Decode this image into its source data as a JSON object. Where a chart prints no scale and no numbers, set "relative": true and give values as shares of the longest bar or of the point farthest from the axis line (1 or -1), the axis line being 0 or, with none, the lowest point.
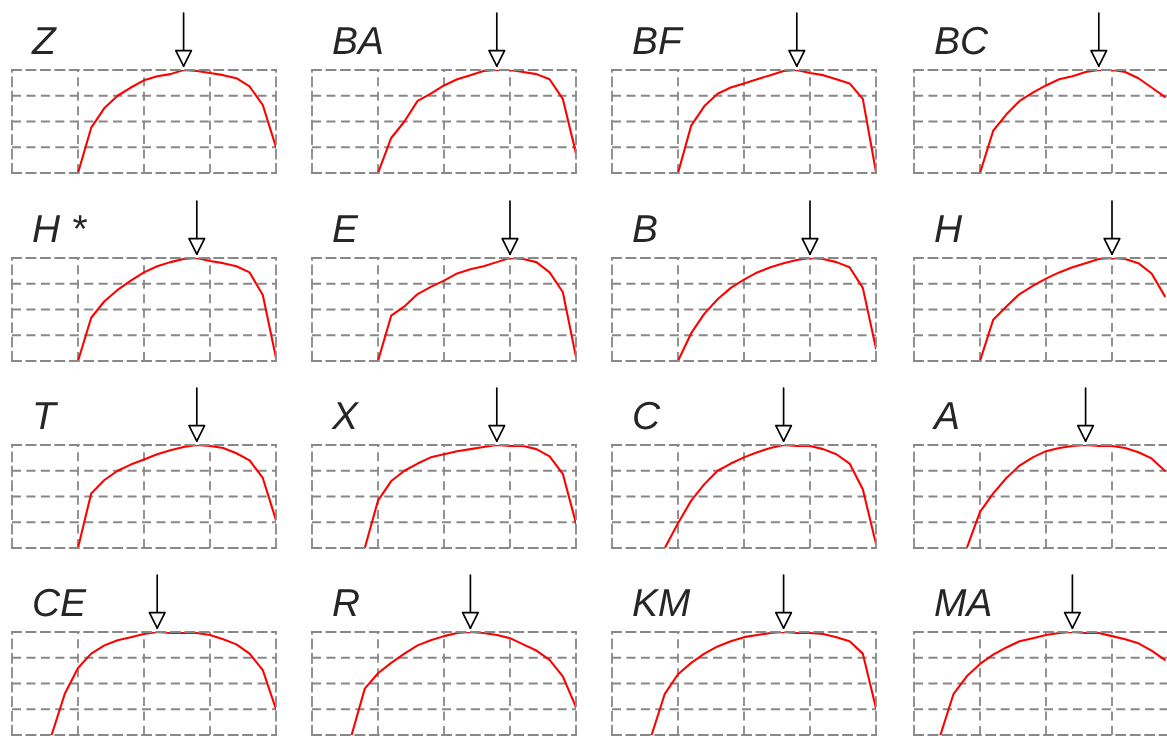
{
  "chart_data": [
    {
      "type": "line",
      "title": "Z",
      "relative": true,
      "grid": true,
      "tick_labels": false,
      "color": "#ff0000",
      "categories": [
        null,
        null,
        null,
        null,
        null,
        null,
        null,
        null,
        null,
        null,
        null,
        null,
        null,
        null,
        null,
        null,
        null,
        null,
        null,
        null,
        null
      ],
      "values": [
        null,
        null,
        null,
        null,
        null,
        0,
        0.44,
        0.63,
        0.75,
        0.83,
        0.9,
        0.94,
        0.96,
        1,
        0.99,
        0.97,
        0.95,
        0.92,
        0.84,
        0.66,
        0.25
      ]
    },
    {
      "type": "line",
      "title": "BA",
      "relative": true,
      "grid": true,
      "tick_labels": false,
      "color": "#ff0000",
      "categories": [
        null,
        null,
        null,
        null,
        null,
        null,
        null,
        null,
        null,
        null,
        null,
        null,
        null,
        null,
        null,
        null,
        null,
        null,
        null,
        null,
        null
      ],
      "values": [
        null,
        null,
        null,
        null,
        null,
        0,
        0.34,
        0.5,
        0.7,
        0.77,
        0.85,
        0.91,
        0.95,
        0.99,
        1,
        1,
        0.98,
        0.96,
        0.91,
        0.72,
        0.19
      ]
    },
    {
      "type": "line",
      "title": "BF",
      "relative": true,
      "grid": true,
      "tick_labels": false,
      "color": "#ff0000",
      "categories": [
        null,
        null,
        null,
        null,
        null,
        null,
        null,
        null,
        null,
        null,
        null,
        null,
        null,
        null,
        null,
        null,
        null,
        null,
        null,
        null,
        null
      ],
      "values": [
        null,
        null,
        null,
        null,
        null,
        0,
        0.46,
        0.65,
        0.77,
        0.83,
        0.87,
        0.91,
        0.95,
        0.99,
        1,
        0.97,
        0.95,
        0.91,
        0.87,
        0.72,
        0.01
      ]
    },
    {
      "type": "line",
      "title": "BC",
      "relative": true,
      "grid": true,
      "tick_labels": false,
      "color": "#ff0000",
      "categories": [
        null,
        null,
        null,
        null,
        null,
        null,
        null,
        null,
        null,
        null,
        null,
        null,
        null,
        null,
        null,
        null,
        null,
        null,
        null,
        null,
        null
      ],
      "values": [
        null,
        null,
        null,
        null,
        null,
        0,
        0.41,
        0.57,
        0.7,
        0.78,
        0.85,
        0.91,
        0.94,
        0.98,
        1,
        1,
        0.98,
        0.92,
        0.83,
        0.74,
        null
      ]
    },
    {
      "type": "line",
      "title": "H *",
      "relative": true,
      "grid": true,
      "tick_labels": false,
      "color": "#ff0000",
      "categories": [
        null,
        null,
        null,
        null,
        null,
        null,
        null,
        null,
        null,
        null,
        null,
        null,
        null,
        null,
        null,
        null,
        null,
        null,
        null,
        null,
        null
      ],
      "values": [
        null,
        null,
        null,
        null,
        null,
        0,
        0.42,
        0.58,
        0.69,
        0.78,
        0.86,
        0.92,
        0.96,
        0.99,
        1,
        0.97,
        0.95,
        0.92,
        0.86,
        0.64,
        0.03
      ]
    },
    {
      "type": "line",
      "title": "E",
      "relative": true,
      "grid": true,
      "tick_labels": false,
      "color": "#ff0000",
      "categories": [
        null,
        null,
        null,
        null,
        null,
        null,
        null,
        null,
        null,
        null,
        null,
        null,
        null,
        null,
        null,
        null,
        null,
        null,
        null,
        null,
        null
      ],
      "values": [
        null,
        null,
        null,
        null,
        null,
        0,
        0.44,
        0.53,
        0.65,
        0.72,
        0.78,
        0.85,
        0.89,
        0.92,
        0.96,
        1,
        0.99,
        0.96,
        0.86,
        0.67,
        0.04
      ]
    },
    {
      "type": "line",
      "title": "B",
      "relative": true,
      "grid": true,
      "tick_labels": false,
      "color": "#ff0000",
      "categories": [
        null,
        null,
        null,
        null,
        null,
        null,
        null,
        null,
        null,
        null,
        null,
        null,
        null,
        null,
        null,
        null,
        null,
        null,
        null,
        null,
        null
      ],
      "values": [
        null,
        null,
        null,
        null,
        null,
        0,
        0.27,
        0.46,
        0.6,
        0.71,
        0.79,
        0.86,
        0.91,
        0.95,
        0.98,
        1,
        0.99,
        0.96,
        0.91,
        0.71,
        0.12
      ]
    },
    {
      "type": "line",
      "title": "H",
      "relative": true,
      "grid": true,
      "tick_labels": false,
      "color": "#ff0000",
      "categories": [
        null,
        null,
        null,
        null,
        null,
        null,
        null,
        null,
        null,
        null,
        null,
        null,
        null,
        null,
        null,
        null,
        null,
        null,
        null,
        null,
        null
      ],
      "values": [
        null,
        null,
        null,
        null,
        null,
        0,
        0.4,
        0.53,
        0.65,
        0.73,
        0.8,
        0.86,
        0.91,
        0.95,
        0.99,
        1,
        0.99,
        0.95,
        0.85,
        0.63,
        null
      ]
    },
    {
      "type": "line",
      "title": "T",
      "relative": true,
      "grid": true,
      "tick_labels": false,
      "color": "#ff0000",
      "categories": [
        null,
        null,
        null,
        null,
        null,
        null,
        null,
        null,
        null,
        null,
        null,
        null,
        null,
        null,
        null,
        null,
        null,
        null,
        null,
        null,
        null
      ],
      "values": [
        null,
        null,
        null,
        null,
        null,
        0,
        0.53,
        0.66,
        0.75,
        0.81,
        0.86,
        0.91,
        0.95,
        0.98,
        1,
        0.99,
        0.97,
        0.92,
        0.85,
        0.68,
        0.27
      ]
    },
    {
      "type": "line",
      "title": "X",
      "relative": true,
      "grid": true,
      "tick_labels": false,
      "color": "#ff0000",
      "categories": [
        null,
        null,
        null,
        null,
        null,
        null,
        null,
        null,
        null,
        null,
        null,
        null,
        null,
        null,
        null,
        null,
        null,
        null,
        null,
        null,
        null
      ],
      "values": [
        null,
        null,
        null,
        null,
        0,
        0.46,
        0.65,
        0.75,
        0.82,
        0.88,
        0.91,
        0.94,
        0.96,
        0.98,
        1,
        0.99,
        0.99,
        0.96,
        0.89,
        0.72,
        0.24
      ]
    },
    {
      "type": "line",
      "title": "C",
      "relative": true,
      "grid": true,
      "tick_labels": false,
      "color": "#ff0000",
      "categories": [
        null,
        null,
        null,
        null,
        null,
        null,
        null,
        null,
        null,
        null,
        null,
        null,
        null,
        null,
        null,
        null,
        null,
        null,
        null,
        null,
        null
      ],
      "values": [
        null,
        null,
        null,
        null,
        0,
        0.24,
        0.46,
        0.62,
        0.75,
        0.82,
        0.88,
        0.93,
        0.97,
        1,
        0.99,
        0.99,
        0.96,
        0.91,
        0.82,
        0.57,
        0.04
      ]
    },
    {
      "type": "line",
      "title": "A",
      "relative": true,
      "grid": true,
      "tick_labels": false,
      "color": "#ff0000",
      "categories": [
        null,
        null,
        null,
        null,
        null,
        null,
        null,
        null,
        null,
        null,
        null,
        null,
        null,
        null,
        null,
        null,
        null,
        null,
        null,
        null,
        null
      ],
      "values": [
        null,
        null,
        null,
        null,
        0,
        0.35,
        0.53,
        0.68,
        0.8,
        0.88,
        0.94,
        0.97,
        0.99,
        1,
        0.99,
        0.99,
        0.97,
        0.93,
        0.87,
        0.75,
        null
      ]
    },
    {
      "type": "line",
      "title": "CE",
      "relative": true,
      "grid": true,
      "tick_labels": false,
      "color": "#ff0000",
      "categories": [
        null,
        null,
        null,
        null,
        null,
        null,
        null,
        null,
        null,
        null,
        null,
        null,
        null,
        null,
        null,
        null,
        null,
        null,
        null,
        null,
        null
      ],
      "values": [
        null,
        null,
        null,
        0,
        0.4,
        0.65,
        0.79,
        0.87,
        0.92,
        0.95,
        0.98,
        1,
        0.99,
        0.99,
        0.99,
        0.97,
        0.93,
        0.88,
        0.79,
        0.63,
        0.25
      ]
    },
    {
      "type": "line",
      "title": "R",
      "relative": true,
      "grid": true,
      "tick_labels": false,
      "color": "#ff0000",
      "categories": [
        null,
        null,
        null,
        null,
        null,
        null,
        null,
        null,
        null,
        null,
        null,
        null,
        null,
        null,
        null,
        null,
        null,
        null,
        null,
        null,
        null
      ],
      "values": [
        null,
        null,
        null,
        0,
        0.45,
        0.6,
        0.7,
        0.79,
        0.87,
        0.92,
        0.96,
        0.99,
        1,
        0.99,
        0.97,
        0.94,
        0.88,
        0.82,
        0.73,
        0.57,
        0.27
      ]
    },
    {
      "type": "line",
      "title": "KM",
      "relative": true,
      "grid": true,
      "tick_labels": false,
      "color": "#ff0000",
      "categories": [
        null,
        null,
        null,
        null,
        null,
        null,
        null,
        null,
        null,
        null,
        null,
        null,
        null,
        null,
        null,
        null,
        null,
        null,
        null,
        null,
        null
      ],
      "values": [
        null,
        null,
        null,
        0,
        0.4,
        0.59,
        0.7,
        0.79,
        0.86,
        0.91,
        0.95,
        0.97,
        0.99,
        1,
        0.99,
        0.99,
        0.98,
        0.95,
        0.91,
        0.79,
        0.26
      ]
    },
    {
      "type": "line",
      "title": "MA",
      "relative": true,
      "grid": true,
      "tick_labels": false,
      "color": "#ff0000",
      "categories": [
        null,
        null,
        null,
        null,
        null,
        null,
        null,
        null,
        null,
        null,
        null,
        null,
        null,
        null,
        null,
        null,
        null,
        null,
        null,
        null,
        null
      ],
      "values": [
        null,
        null,
        0,
        0.4,
        0.57,
        0.69,
        0.78,
        0.85,
        0.91,
        0.94,
        0.97,
        0.99,
        1,
        0.99,
        0.99,
        0.96,
        0.93,
        0.89,
        0.82,
        0.73,
        null
      ]
    }
  ]
}
